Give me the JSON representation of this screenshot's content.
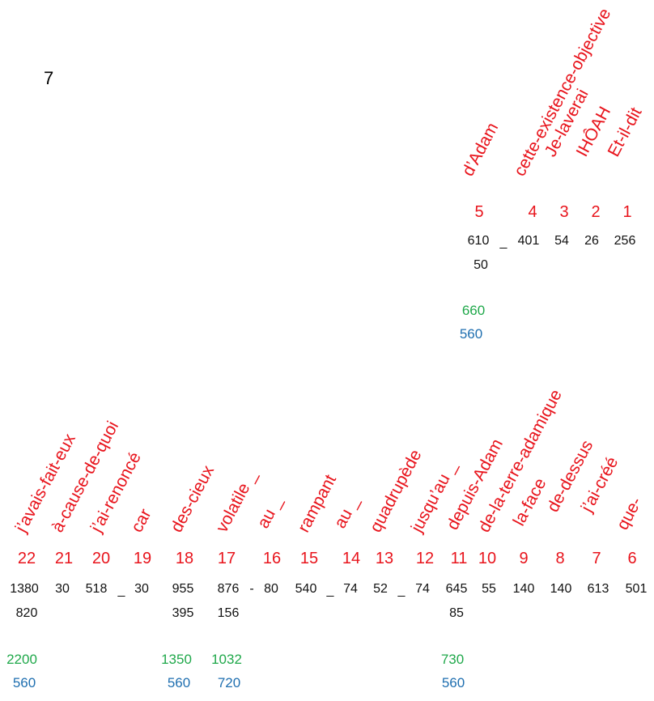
{
  "verse_number": "7",
  "top_block": {
    "words": [
      "Et-il-dit",
      "IHÔAH",
      "Je-laverai",
      "cette-existence-objective",
      "d’Adam"
    ],
    "indices": [
      "1",
      "2",
      "3",
      "4",
      "5"
    ],
    "values": [
      "256",
      "26",
      "54",
      "401",
      "610"
    ],
    "extra_values": {
      "5": "50"
    },
    "separators": [
      "_"
    ],
    "sums": {
      "5": {
        "green": "660",
        "blue": "560"
      }
    }
  },
  "bottom_block": {
    "words": [
      "que-",
      "j’ai-créé",
      "de-dessus",
      "la-face",
      "de-la-terre-adamique",
      "depuis-Adam",
      "jusqu’au _",
      "quadrupède",
      "au _",
      "rampant",
      "au _",
      "volatile _",
      "des-cieux",
      "car",
      "j’ai-renoncé",
      "à-cause-de-quoi",
      "j’avais-fait-eux"
    ],
    "indices": [
      "6",
      "7",
      "8",
      "9",
      "10",
      "11",
      "12",
      "13",
      "14",
      "15",
      "16",
      "17",
      "18",
      "19",
      "20",
      "21",
      "22"
    ],
    "values": [
      "501",
      "613",
      "140",
      "140",
      "55",
      "645",
      "74",
      "52",
      "74",
      "540",
      "80",
      "876",
      "955",
      "30",
      "518",
      "30",
      "1380"
    ],
    "extra_values": {
      "11": "85",
      "17": "156",
      "18": "395",
      "22": "820"
    },
    "separators": [
      "_",
      "_",
      "-",
      "_"
    ],
    "sums": {
      "11": {
        "green": "730",
        "blue": "560"
      },
      "17": {
        "green": "1032",
        "blue": "720"
      },
      "18": {
        "green": "1350",
        "blue": "560"
      },
      "22": {
        "green": "2200",
        "blue": "560"
      }
    }
  }
}
